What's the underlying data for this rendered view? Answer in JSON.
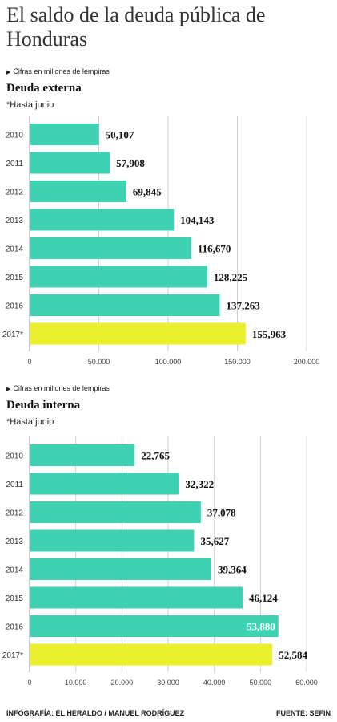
{
  "title": "El saldo de la deuda pública de Honduras",
  "credit": "INFOGRAFÍA: EL HERALDO / MANUEL RODRÍGUEZ",
  "source": "FUENTE: SEFIN",
  "colors": {
    "bar": "#3ed2b2",
    "highlight": "#e9ef2a",
    "grid": "#cfcfcf"
  },
  "chart_data": [
    {
      "type": "bar",
      "orientation": "horizontal",
      "note": "Cifras en millones de lempiras",
      "title": "Deuda externa",
      "subtitle": "*Hasta junio",
      "categories": [
        "2010",
        "2011",
        "2012",
        "2013",
        "2014",
        "2015",
        "2016",
        "2017*"
      ],
      "values": [
        50107,
        57908,
        69845,
        104143,
        116670,
        128225,
        137263,
        155963
      ],
      "value_labels": [
        "50,107",
        "57,908",
        "69,845",
        "104,143",
        "116,670",
        "128,225",
        "137,263",
        "155,963"
      ],
      "highlight_index": 7,
      "xlim": [
        0,
        200000
      ],
      "xticks": [
        0,
        50000,
        100000,
        150000,
        200000
      ],
      "xtick_labels": [
        "0",
        "50,000",
        "100,000",
        "150,000",
        "200,000"
      ],
      "grid": true
    },
    {
      "type": "bar",
      "orientation": "horizontal",
      "note": "Cifras en millones de lempiras",
      "title": "Deuda interna",
      "subtitle": "*Hasta junio",
      "categories": [
        "2010",
        "2011",
        "2012",
        "2013",
        "2014",
        "2015",
        "2016",
        "2017*"
      ],
      "values": [
        22765,
        32322,
        37078,
        35627,
        39364,
        46124,
        53880,
        52584
      ],
      "value_labels": [
        "22,765",
        "32,322",
        "37,078",
        "35,627",
        "39,364",
        "46,124",
        "53,880",
        "52,584"
      ],
      "highlight_index": 7,
      "inside_label_index": 6,
      "xlim": [
        0,
        60000
      ],
      "xticks": [
        0,
        10000,
        20000,
        30000,
        40000,
        50000,
        60000
      ],
      "xtick_labels": [
        "0",
        "10,000",
        "20,000",
        "30,000",
        "40,000",
        "50,000",
        "60,000"
      ],
      "grid": true
    }
  ]
}
